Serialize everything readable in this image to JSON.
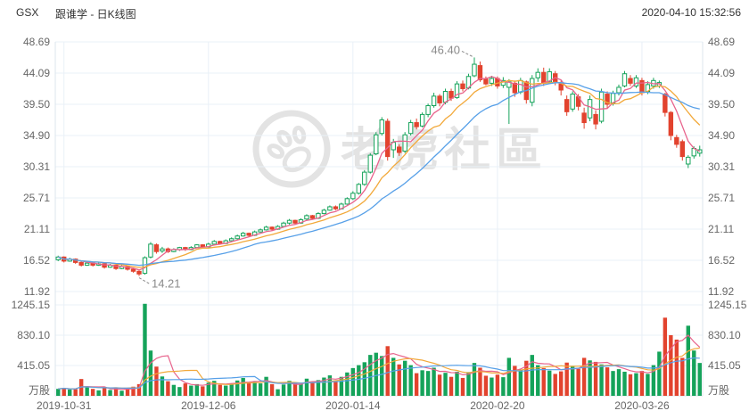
{
  "header": {
    "symbol": "GSX",
    "title": "跟谁学 - 日K线图",
    "timestamp": "2020-04-10 15:32:56"
  },
  "watermark": {
    "text": "老虎社區",
    "icon": "tiger-paw-icon"
  },
  "colors": {
    "up": "#15A35A",
    "down": "#E2432E",
    "ma_fast": "#E8638C",
    "ma_mid": "#F2A93B",
    "ma_slow": "#57A0E8",
    "grid": "#E9F0F7",
    "border": "#DDE5EE",
    "axis_text": "#666666",
    "title_text": "#333333",
    "annotation": "#8A8A8A",
    "watermark": "#E3E3E3"
  },
  "chart_data": {
    "type": "candlestick",
    "title": "GSX 跟谁学 - 日K线图",
    "grid": true,
    "legend_position": "none",
    "price_axis": {
      "ticks": [
        "48.69",
        "44.09",
        "39.50",
        "34.90",
        "30.31",
        "25.71",
        "21.11",
        "16.52",
        "11.92"
      ],
      "max": 48.69,
      "min": 11.92
    },
    "volume_axis": {
      "ticks": [
        "1245.15",
        "830.10",
        "415.05"
      ],
      "max_tick": 1245.15,
      "unit": "万股"
    },
    "x_axis": {
      "labels": [
        {
          "text": "2019-10-31",
          "index": 1
        },
        {
          "text": "2019-12-06",
          "index": 26
        },
        {
          "text": "2020-01-14",
          "index": 51
        },
        {
          "text": "2020-02-20",
          "index": 76
        },
        {
          "text": "2020-03-26",
          "index": 101
        }
      ]
    },
    "annotations": [
      {
        "text": "46.40",
        "kind": "high",
        "index": 72,
        "price": 46.4
      },
      {
        "text": "14.21",
        "kind": "low",
        "index": 14,
        "price": 14.21
      }
    ],
    "moving_averages": [
      {
        "name": "MA5",
        "window": 5,
        "color": "#E8638C"
      },
      {
        "name": "MA10",
        "window": 10,
        "color": "#F2A93B"
      },
      {
        "name": "MA20",
        "window": 20,
        "color": "#57A0E8"
      }
    ],
    "candles_format": [
      "date",
      "open",
      "high",
      "low",
      "close",
      "volume_wan"
    ],
    "candles": [
      [
        "2019-10-30",
        16.6,
        17.2,
        16.4,
        17.0,
        95
      ],
      [
        "2019-10-31",
        17.0,
        17.1,
        16.2,
        16.4,
        110
      ],
      [
        "2019-11-01",
        16.4,
        16.9,
        16.3,
        16.7,
        85
      ],
      [
        "2019-11-04",
        16.7,
        16.8,
        16.0,
        16.2,
        90
      ],
      [
        "2019-11-05",
        16.2,
        16.4,
        15.6,
        15.8,
        230
      ],
      [
        "2019-11-06",
        15.8,
        16.3,
        15.7,
        16.1,
        120
      ],
      [
        "2019-11-07",
        16.1,
        16.2,
        15.6,
        15.8,
        95
      ],
      [
        "2019-11-08",
        15.8,
        16.2,
        15.7,
        16.0,
        75
      ],
      [
        "2019-11-11",
        16.0,
        16.1,
        15.3,
        15.5,
        105
      ],
      [
        "2019-11-12",
        15.5,
        16.0,
        15.4,
        15.8,
        80
      ],
      [
        "2019-11-13",
        15.8,
        15.9,
        15.1,
        15.3,
        115
      ],
      [
        "2019-11-14",
        15.3,
        15.8,
        15.2,
        15.6,
        70
      ],
      [
        "2019-11-15",
        15.6,
        15.7,
        15.0,
        15.2,
        90
      ],
      [
        "2019-11-18",
        15.2,
        15.3,
        14.7,
        14.9,
        125
      ],
      [
        "2019-11-19",
        14.9,
        15.0,
        14.21,
        14.5,
        160
      ],
      [
        "2019-11-20",
        14.6,
        17.1,
        14.4,
        16.9,
        1260
      ],
      [
        "2019-11-21",
        17.0,
        19.2,
        16.8,
        18.9,
        620
      ],
      [
        "2019-11-22",
        18.8,
        19.0,
        17.5,
        17.8,
        400
      ],
      [
        "2019-11-25",
        17.9,
        18.5,
        17.6,
        18.2,
        265
      ],
      [
        "2019-11-26",
        18.2,
        18.4,
        17.6,
        17.8,
        200
      ],
      [
        "2019-11-27",
        17.8,
        18.3,
        17.7,
        18.1,
        150
      ],
      [
        "2019-11-29",
        18.1,
        18.5,
        17.9,
        18.4,
        120
      ],
      [
        "2019-12-02",
        18.4,
        18.5,
        17.9,
        18.1,
        170
      ],
      [
        "2019-12-03",
        18.1,
        18.6,
        18.0,
        18.4,
        140
      ],
      [
        "2019-12-04",
        18.4,
        18.9,
        18.3,
        18.8,
        160
      ],
      [
        "2019-12-05",
        18.8,
        18.9,
        18.3,
        18.5,
        130
      ],
      [
        "2019-12-06",
        18.5,
        19.1,
        18.4,
        18.9,
        180
      ],
      [
        "2019-12-09",
        18.9,
        19.5,
        18.8,
        19.3,
        205
      ],
      [
        "2019-12-10",
        19.3,
        19.4,
        18.8,
        19.0,
        150
      ],
      [
        "2019-12-11",
        19.0,
        19.6,
        18.9,
        19.4,
        140
      ],
      [
        "2019-12-12",
        19.4,
        19.9,
        19.3,
        19.7,
        165
      ],
      [
        "2019-12-13",
        19.7,
        20.3,
        19.6,
        20.1,
        210
      ],
      [
        "2019-12-16",
        20.1,
        20.7,
        20.0,
        20.5,
        245
      ],
      [
        "2019-12-17",
        20.5,
        20.6,
        20.0,
        20.2,
        180
      ],
      [
        "2019-12-18",
        20.2,
        20.9,
        20.1,
        20.7,
        190
      ],
      [
        "2019-12-19",
        20.7,
        21.2,
        20.6,
        21.0,
        170
      ],
      [
        "2019-12-20",
        21.0,
        21.6,
        20.9,
        21.4,
        260
      ],
      [
        "2019-12-23",
        21.4,
        21.5,
        20.9,
        21.1,
        160
      ],
      [
        "2019-12-24",
        21.1,
        21.7,
        21.0,
        21.5,
        90
      ],
      [
        "2019-12-26",
        21.5,
        22.2,
        21.4,
        22.0,
        155
      ],
      [
        "2019-12-27",
        22.0,
        22.6,
        21.8,
        22.4,
        205
      ],
      [
        "2019-12-30",
        22.4,
        22.5,
        21.8,
        22.0,
        180
      ],
      [
        "2019-12-31",
        22.0,
        22.7,
        21.9,
        22.5,
        160
      ],
      [
        "2020-01-02",
        22.6,
        23.3,
        22.4,
        23.1,
        235
      ],
      [
        "2020-01-03",
        23.1,
        23.2,
        22.5,
        22.7,
        190
      ],
      [
        "2020-01-06",
        22.7,
        23.6,
        22.6,
        23.4,
        215
      ],
      [
        "2020-01-07",
        23.4,
        24.1,
        23.3,
        23.9,
        250
      ],
      [
        "2020-01-08",
        23.9,
        24.6,
        23.8,
        24.4,
        280
      ],
      [
        "2020-01-09",
        24.4,
        24.6,
        23.9,
        24.1,
        205
      ],
      [
        "2020-01-10",
        24.1,
        25.0,
        24.0,
        24.8,
        260
      ],
      [
        "2020-01-13",
        24.8,
        25.8,
        24.7,
        25.6,
        320
      ],
      [
        "2020-01-14",
        25.6,
        26.7,
        25.4,
        26.4,
        380
      ],
      [
        "2020-01-15",
        26.4,
        27.9,
        26.2,
        27.7,
        420
      ],
      [
        "2020-01-16",
        27.7,
        29.8,
        27.5,
        29.5,
        460
      ],
      [
        "2020-01-17",
        29.5,
        32.3,
        29.3,
        32.0,
        560
      ],
      [
        "2020-01-21",
        32.2,
        35.4,
        32.0,
        35.0,
        590
      ],
      [
        "2020-01-22",
        35.2,
        37.6,
        34.9,
        37.2,
        545
      ],
      [
        "2020-01-23",
        37.0,
        37.4,
        31.2,
        31.8,
        680
      ],
      [
        "2020-01-24",
        32.8,
        34.4,
        31.6,
        33.9,
        520
      ],
      [
        "2020-01-27",
        33.2,
        33.6,
        31.9,
        32.4,
        430
      ],
      [
        "2020-01-28",
        32.6,
        35.4,
        32.3,
        35.0,
        480
      ],
      [
        "2020-01-29",
        35.2,
        37.2,
        34.9,
        36.8,
        420
      ],
      [
        "2020-01-30",
        36.8,
        37.4,
        35.8,
        36.2,
        310
      ],
      [
        "2020-01-31",
        36.3,
        38.3,
        36.1,
        38.0,
        350
      ],
      [
        "2020-02-03",
        38.0,
        39.6,
        37.6,
        39.3,
        340
      ],
      [
        "2020-02-04",
        39.3,
        41.2,
        39.0,
        40.7,
        385
      ],
      [
        "2020-02-05",
        40.7,
        41.0,
        39.2,
        39.7,
        290
      ],
      [
        "2020-02-06",
        39.8,
        41.8,
        39.5,
        41.4,
        315
      ],
      [
        "2020-02-07",
        41.4,
        41.8,
        40.0,
        40.4,
        260
      ],
      [
        "2020-02-10",
        40.5,
        42.9,
        40.3,
        42.5,
        330
      ],
      [
        "2020-02-11",
        42.5,
        43.0,
        41.4,
        41.8,
        245
      ],
      [
        "2020-02-12",
        41.9,
        44.0,
        41.7,
        43.6,
        325
      ],
      [
        "2020-02-13",
        43.7,
        46.4,
        43.5,
        45.4,
        450
      ],
      [
        "2020-02-14",
        45.2,
        45.8,
        42.8,
        43.1,
        385
      ],
      [
        "2020-02-18",
        43.2,
        43.6,
        42.3,
        42.5,
        275
      ],
      [
        "2020-02-19",
        42.6,
        43.7,
        42.2,
        43.3,
        250
      ],
      [
        "2020-02-20",
        43.3,
        43.6,
        41.8,
        42.2,
        290
      ],
      [
        "2020-02-21",
        42.3,
        43.5,
        41.9,
        43.0,
        255
      ],
      [
        "2020-02-24",
        42.0,
        43.2,
        36.6,
        42.8,
        520
      ],
      [
        "2020-02-25",
        42.6,
        43.0,
        40.6,
        41.2,
        410
      ],
      [
        "2020-02-26",
        41.3,
        43.4,
        41.0,
        43.0,
        360
      ],
      [
        "2020-02-27",
        42.8,
        43.0,
        39.6,
        40.2,
        480
      ],
      [
        "2020-02-28",
        39.8,
        43.8,
        39.2,
        43.3,
        560
      ],
      [
        "2020-03-02",
        43.4,
        44.8,
        42.8,
        44.2,
        420
      ],
      [
        "2020-03-03",
        44.2,
        44.9,
        42.2,
        42.6,
        380
      ],
      [
        "2020-03-04",
        42.8,
        44.8,
        42.5,
        44.3,
        345
      ],
      [
        "2020-03-05",
        44.0,
        44.4,
        42.3,
        42.8,
        300
      ],
      [
        "2020-03-06",
        42.5,
        43.0,
        40.8,
        41.6,
        335
      ],
      [
        "2020-03-09",
        40.2,
        40.8,
        37.8,
        38.4,
        455
      ],
      [
        "2020-03-10",
        38.8,
        41.4,
        38.4,
        41.0,
        410
      ],
      [
        "2020-03-11",
        40.6,
        41.0,
        38.6,
        39.2,
        370
      ],
      [
        "2020-03-12",
        38.2,
        39.0,
        35.9,
        36.8,
        520
      ],
      [
        "2020-03-13",
        37.5,
        40.8,
        37.0,
        40.2,
        485
      ],
      [
        "2020-03-16",
        38.0,
        38.6,
        35.8,
        36.6,
        465
      ],
      [
        "2020-03-17",
        37.0,
        41.8,
        36.7,
        41.3,
        430
      ],
      [
        "2020-03-18",
        41.0,
        41.4,
        38.9,
        39.5,
        390
      ],
      [
        "2020-03-19",
        39.7,
        41.5,
        39.3,
        41.1,
        340
      ],
      [
        "2020-03-20",
        41.2,
        42.4,
        40.8,
        42.0,
        365
      ],
      [
        "2020-03-23",
        42.2,
        44.4,
        42.0,
        44.0,
        330
      ],
      [
        "2020-03-24",
        43.3,
        43.8,
        42.2,
        42.6,
        295
      ],
      [
        "2020-03-25",
        42.2,
        43.8,
        41.9,
        43.4,
        310
      ],
      [
        "2020-03-26",
        43.0,
        43.4,
        40.8,
        41.2,
        340
      ],
      [
        "2020-03-27",
        41.4,
        42.9,
        41.0,
        42.4,
        300
      ],
      [
        "2020-03-30",
        42.2,
        43.4,
        41.8,
        43.0,
        420
      ],
      [
        "2020-03-31",
        42.2,
        43.0,
        41.9,
        42.7,
        605
      ],
      [
        "2020-04-01",
        41.0,
        41.2,
        37.7,
        38.3,
        1070
      ],
      [
        "2020-04-02",
        38.3,
        38.5,
        34.2,
        34.9,
        830
      ],
      [
        "2020-04-03",
        34.6,
        35.0,
        33.1,
        33.6,
        770
      ],
      [
        "2020-04-06",
        34.0,
        34.3,
        31.2,
        31.8,
        520
      ],
      [
        "2020-04-07",
        30.7,
        32.0,
        30.1,
        31.7,
        960
      ],
      [
        "2020-04-08",
        31.9,
        33.3,
        31.5,
        33.0,
        620
      ],
      [
        "2020-04-09",
        32.3,
        33.4,
        31.8,
        32.8,
        450
      ]
    ]
  }
}
